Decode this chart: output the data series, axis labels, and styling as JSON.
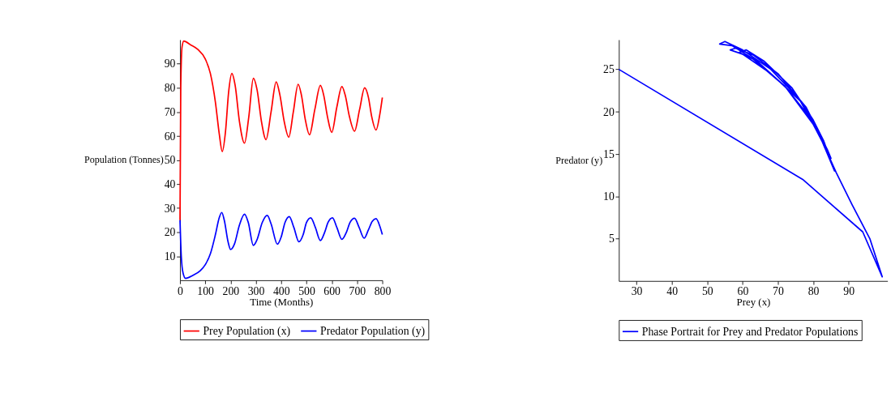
{
  "chart_data": [
    {
      "type": "line",
      "xlabel": "Time (Months)",
      "ylabel": "Population (Tonnes)",
      "xlim": [
        0,
        800
      ],
      "ylim": [
        0,
        100
      ],
      "xticks": [
        0,
        100,
        200,
        300,
        400,
        500,
        600,
        700,
        800
      ],
      "yticks": [
        10,
        20,
        30,
        40,
        50,
        60,
        70,
        80,
        90
      ],
      "grid": false,
      "legend": "bottom",
      "marker": "none",
      "line_style": "solid",
      "series": [
        {
          "name": "Prey Population (x)",
          "color": "#ff0000",
          "x": [
            0,
            3,
            8,
            15,
            40,
            70,
            100,
            120,
            140,
            155,
            167,
            180,
            192,
            205,
            218,
            235,
            255,
            272,
            290,
            305,
            322,
            340,
            360,
            380,
            395,
            412,
            430,
            448,
            467,
            480,
            495,
            512,
            533,
            555,
            568,
            583,
            600,
            620,
            640,
            653,
            670,
            690,
            710,
            730,
            745,
            758,
            775,
            790,
            800
          ],
          "values": [
            25,
            80,
            97,
            99.5,
            98,
            96,
            92,
            86,
            74,
            61,
            53.5,
            62,
            78,
            86,
            81,
            66,
            57,
            68,
            84,
            79,
            66,
            58.5,
            70,
            82.5,
            77,
            66,
            59.5,
            70,
            81.5,
            77,
            67,
            60.5,
            71,
            81,
            77,
            68,
            61.5,
            72,
            80.5,
            77,
            68,
            62,
            71,
            80,
            76,
            68,
            62.5,
            69,
            76
          ]
        },
        {
          "name": "Predator Population (y)",
          "color": "#0000ff",
          "x": [
            0,
            5,
            12,
            22,
            50,
            80,
            100,
            120,
            140,
            155,
            165,
            175,
            190,
            200,
            215,
            235,
            255,
            270,
            290,
            305,
            325,
            345,
            360,
            385,
            400,
            415,
            432,
            450,
            470,
            487,
            500,
            517,
            535,
            555,
            572,
            585,
            603,
            620,
            640,
            658,
            672,
            690,
            708,
            728,
            745,
            760,
            775,
            790,
            800
          ],
          "values": [
            25,
            10,
            3,
            0.8,
            2,
            4,
            6.5,
            11,
            19,
            26,
            28.2,
            25,
            16,
            12.8,
            15,
            23,
            27.5,
            24,
            14.5,
            17,
            24,
            27,
            23.5,
            15,
            18,
            24,
            26.5,
            22,
            16,
            19,
            24,
            26,
            22,
            16.5,
            20,
            24,
            26,
            22,
            17,
            20,
            24,
            25.8,
            22,
            17.5,
            21,
            24.5,
            25.6,
            22.5,
            19
          ]
        }
      ]
    },
    {
      "type": "line",
      "xlabel": "Prey (x)",
      "ylabel": "Predator (y)",
      "xlim": [
        25,
        101
      ],
      "ylim": [
        0,
        28.5
      ],
      "xticks": [
        30,
        40,
        50,
        60,
        70,
        80,
        90
      ],
      "yticks": [
        5,
        10,
        15,
        20,
        25
      ],
      "grid": false,
      "legend": "bottom",
      "marker": "none",
      "line_style": "solid",
      "series": [
        {
          "name": "Phase Portrait for Prey and Predator Populations",
          "color": "#0000ff",
          "x": [
            25,
            77,
            94,
            99.5,
            96,
            91,
            86.5,
            80,
            72,
            64,
            57,
            53.5,
            55,
            60,
            68,
            76,
            82,
            86,
            83,
            77,
            68,
            60,
            56.5,
            58,
            63,
            70,
            78,
            84,
            85,
            80,
            72,
            63,
            59,
            61,
            66,
            74,
            80,
            83
          ],
          "values": [
            25,
            12,
            5.8,
            0.5,
            5,
            9,
            12.8,
            18.8,
            23,
            26,
            27.8,
            28,
            28.3,
            27.3,
            25,
            21.5,
            17,
            13,
            16.5,
            21,
            24.5,
            26.8,
            27.3,
            27.5,
            26.7,
            24.5,
            20.5,
            15.5,
            14.5,
            18.5,
            23,
            26.2,
            27,
            27.3,
            26,
            22.8,
            19,
            16.5
          ]
        }
      ]
    }
  ]
}
